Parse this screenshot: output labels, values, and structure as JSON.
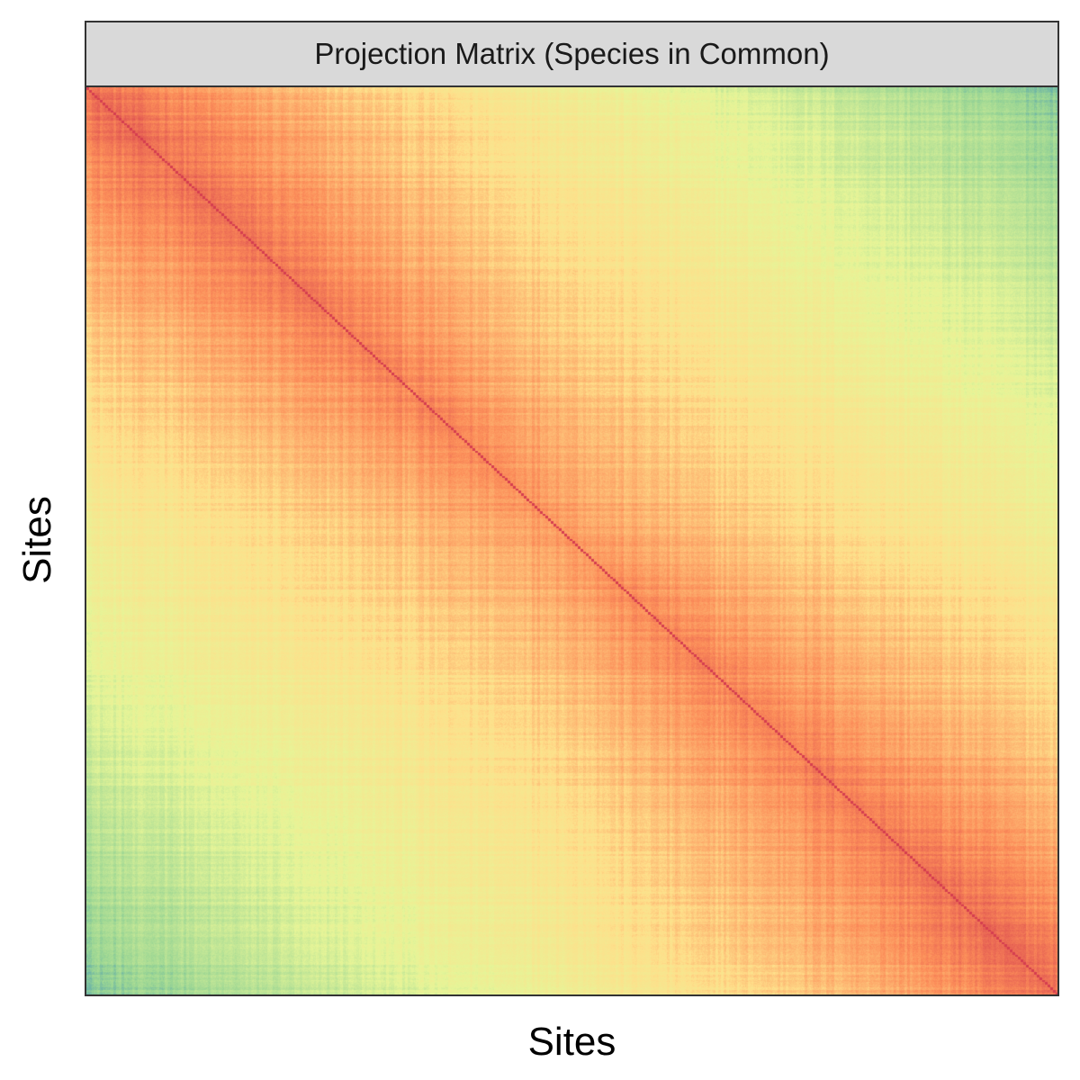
{
  "chart_data": {
    "type": "heatmap",
    "title": "Projection Matrix (Species in Common)",
    "xlabel": "Sites",
    "ylabel": "Sites",
    "x_ticks": [],
    "y_ticks": [],
    "legend": "none",
    "grid": false,
    "colormap": [
      "#d53e4f",
      "#fc8d59",
      "#fee08b",
      "#e6f598",
      "#99d594",
      "#3288bd"
    ],
    "n_sites": 360,
    "matrix_model": {
      "description_kind": "symmetric similarity, peak on diagonal, decays with site distance",
      "diagonal_value": 1.0,
      "far_corner_value": 0.35,
      "max_block_value": 0.83
    }
  }
}
